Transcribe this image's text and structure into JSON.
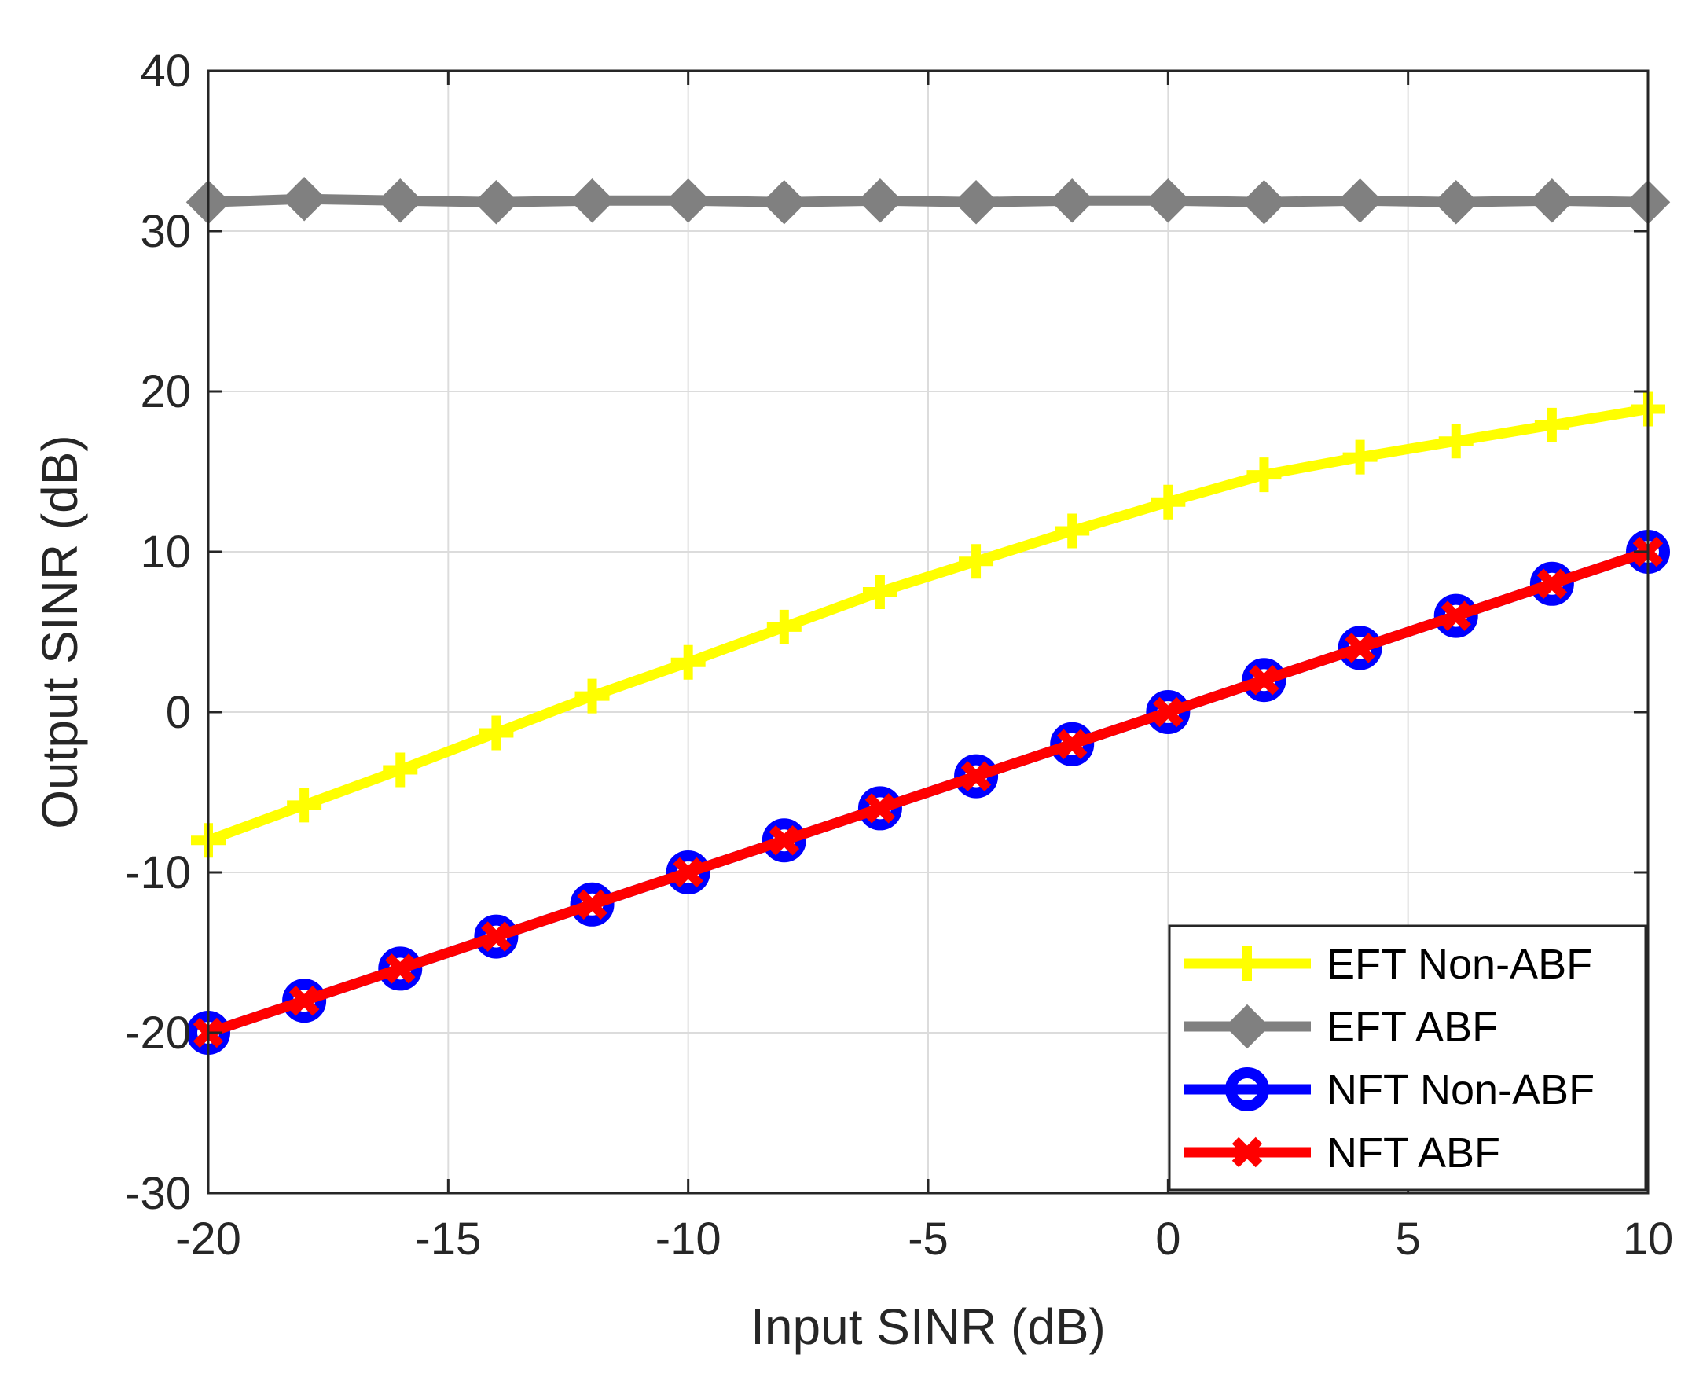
{
  "chart_data": {
    "type": "line",
    "title": "",
    "xlabel": "Input SINR (dB)",
    "ylabel": "Output SINR (dB)",
    "xlim": [
      -20,
      10
    ],
    "ylim": [
      -30,
      40
    ],
    "xticks": [
      -20,
      -15,
      -10,
      -5,
      0,
      5,
      10
    ],
    "yticks": [
      -30,
      -20,
      -10,
      0,
      10,
      20,
      30,
      40
    ],
    "grid": true,
    "legend_position": "bottom-right",
    "x": [
      -20,
      -18,
      -16,
      -14,
      -12,
      -10,
      -8,
      -6,
      -4,
      -2,
      0,
      2,
      4,
      6,
      8,
      10
    ],
    "series": [
      {
        "name": "EFT Non-ABF",
        "color": "#ffff00",
        "marker": "plus",
        "values": [
          -8,
          -5.8,
          -3.6,
          -1.3,
          1,
          3.1,
          5.3,
          7.5,
          9.4,
          11.3,
          13.1,
          14.8,
          15.9,
          16.9,
          17.9,
          18.9
        ]
      },
      {
        "name": "EFT ABF",
        "color": "#808080",
        "marker": "diamond",
        "values": [
          31.8,
          32,
          31.9,
          31.8,
          31.9,
          31.9,
          31.8,
          31.9,
          31.8,
          31.9,
          31.9,
          31.8,
          31.9,
          31.8,
          31.9,
          31.8
        ]
      },
      {
        "name": "NFT Non-ABF",
        "color": "#0000ff",
        "marker": "circle",
        "values": [
          -20,
          -18,
          -16,
          -14,
          -12,
          -10,
          -8,
          -6,
          -4,
          -2,
          0,
          2,
          4,
          6,
          8,
          10
        ]
      },
      {
        "name": "NFT ABF",
        "color": "#ff0000",
        "marker": "x",
        "values": [
          -20,
          -18,
          -16,
          -14,
          -12,
          -10,
          -8,
          -6,
          -4,
          -2,
          0,
          2,
          4,
          6,
          8,
          10
        ]
      }
    ]
  }
}
